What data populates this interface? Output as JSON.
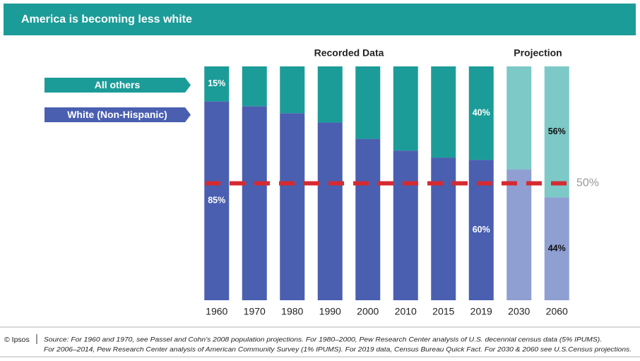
{
  "chart_data": {
    "type": "stacked_bar",
    "title": "America is becoming less white",
    "categories": [
      "1960",
      "1970",
      "1980",
      "1990",
      "2000",
      "2010",
      "2015",
      "2019",
      "2030",
      "2060"
    ],
    "series": [
      {
        "name": "All others",
        "color": "#1c9c98",
        "projected_color": "#7cc9c7",
        "values": [
          15,
          17,
          20,
          24,
          31,
          36,
          39,
          40,
          44,
          56
        ],
        "value_labels": [
          "15%",
          null,
          null,
          null,
          null,
          null,
          null,
          "40%",
          null,
          "56%"
        ]
      },
      {
        "name": "White (Non-Hispanic)",
        "color": "#4a5fb0",
        "projected_color": "#8f9fd2",
        "values": [
          85,
          83,
          80,
          76,
          69,
          64,
          61,
          60,
          56,
          44
        ],
        "value_labels": [
          "85%",
          null,
          null,
          null,
          null,
          null,
          null,
          "60%",
          null,
          "44%"
        ]
      }
    ],
    "sections": [
      {
        "label": "Recorded Data",
        "from": "1960",
        "to": "2019",
        "projected": false
      },
      {
        "label": "Projection",
        "from": "2030",
        "to": "2060",
        "projected": true
      }
    ],
    "ylim": [
      0,
      100
    ],
    "reference_line": {
      "value": 50,
      "label": "50%",
      "color": "#d62a31"
    },
    "credit": "© Ipsos",
    "source": [
      "Source: For 1960 and 1970, see Passel and Cohn’s 2008 population projections. For 1980–2000, Pew Research Center analysis of U.S. decennial census data (5% IPUMS).",
      "For 2006–2014, Pew Research Center analysis of American Community Survey (1% IPUMS). For 2019 data, Census Bureau Quick Fact. For 2030 & 2060 see U.S.Census projections."
    ]
  }
}
